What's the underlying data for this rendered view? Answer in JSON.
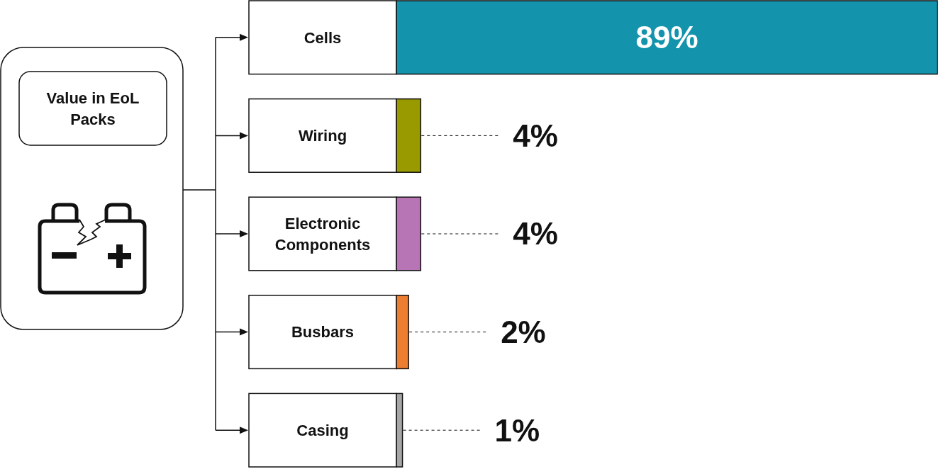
{
  "chart_data": {
    "type": "bar",
    "orientation": "horizontal",
    "title": "Value in EoL Packs",
    "categories": [
      "Cells",
      "Wiring",
      "Electronic Components",
      "Busbars",
      "Casing"
    ],
    "values": [
      89,
      4,
      4,
      2,
      1
    ],
    "colors": [
      "#1493ad",
      "#999900",
      "#b875b5",
      "#ed7d31",
      "#a6a6a6"
    ],
    "value_labels": [
      "89%",
      "4%",
      "4%",
      "2%",
      "1%"
    ],
    "tick_labels": "y"
  }
}
